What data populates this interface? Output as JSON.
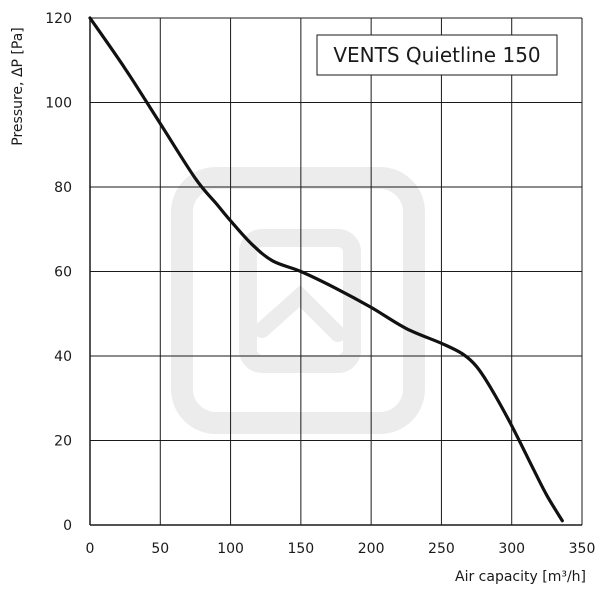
{
  "chart_data": {
    "type": "line",
    "title": "VENTS Quietline 150",
    "xlabel": "Air capacity [m³/h]",
    "ylabel": "Pressure, ΔP [Pa]",
    "xlim": [
      0,
      350
    ],
    "ylim": [
      0,
      120
    ],
    "xticks": [
      "0",
      "50",
      "100",
      "150",
      "200",
      "250",
      "300",
      "350"
    ],
    "yticks": [
      "0",
      "20",
      "40",
      "60",
      "80",
      "100",
      "120"
    ],
    "grid": true,
    "legend": "none",
    "line_color": "#111111",
    "grid_color": "#1a1a1a",
    "watermark_color": "#ececec",
    "series": [
      {
        "x": [
          0,
          25,
          50,
          75,
          90,
          100,
          115,
          130,
          150,
          175,
          200,
          225,
          250,
          265,
          275,
          285,
          300,
          315,
          325,
          336
        ],
        "y": [
          120,
          108,
          95,
          82,
          76,
          72,
          66.5,
          62.5,
          60,
          56,
          51.5,
          46.5,
          43,
          40.5,
          37.5,
          32.5,
          23.5,
          13.5,
          7,
          1
        ]
      }
    ]
  }
}
